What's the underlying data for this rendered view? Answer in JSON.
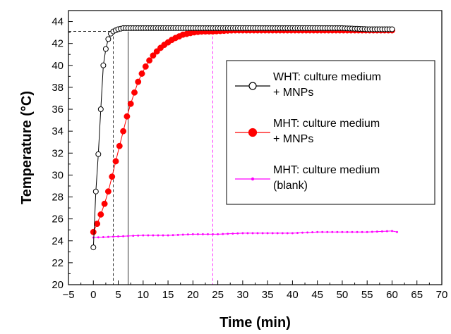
{
  "chart_data": {
    "type": "line",
    "title": "",
    "xlabel": "Time (min)",
    "ylabel": "Temperature (°C)",
    "xlim": [
      -5,
      70
    ],
    "ylim": [
      20,
      45
    ],
    "xticks": [
      -5,
      0,
      5,
      10,
      15,
      20,
      25,
      30,
      35,
      40,
      45,
      50,
      55,
      60,
      65,
      70
    ],
    "yticks": [
      20,
      22,
      24,
      26,
      28,
      30,
      32,
      34,
      36,
      38,
      40,
      42,
      44
    ],
    "grid": false,
    "legend_position": "center-right",
    "series": [
      {
        "name": "WHT: culture medium + MNPs",
        "legend_lines": [
          "WHT: culture medium",
          "+ MNPs"
        ],
        "marker": "open-circle",
        "color": "#000000",
        "x": [
          0,
          0.5,
          1,
          1.5,
          2,
          2.5,
          3,
          3.5,
          4,
          5,
          6,
          7,
          8,
          10,
          15,
          20,
          25,
          30,
          35,
          40,
          45,
          50,
          55,
          60
        ],
        "y": [
          23.4,
          28.5,
          31.9,
          36.0,
          40.0,
          41.5,
          42.4,
          42.9,
          43.1,
          43.3,
          43.4,
          43.4,
          43.4,
          43.4,
          43.4,
          43.4,
          43.4,
          43.4,
          43.4,
          43.4,
          43.4,
          43.4,
          43.3,
          43.3
        ]
      },
      {
        "name": "MHT: culture medium + MNPs",
        "legend_lines": [
          "MHT: culture medium",
          "+ MNPs"
        ],
        "marker": "filled-circle",
        "color": "#ff0000",
        "x": [
          0,
          1,
          2,
          3,
          4,
          5,
          6,
          7,
          8,
          9,
          10,
          11,
          12,
          13,
          14,
          15,
          16,
          17,
          18,
          19,
          20,
          21,
          22,
          23,
          24,
          26,
          28,
          30,
          35,
          40,
          45,
          50,
          55,
          60
        ],
        "y": [
          24.8,
          25.8,
          27.0,
          28.5,
          30.3,
          32.2,
          34.0,
          35.8,
          37.2,
          38.5,
          39.5,
          40.3,
          40.9,
          41.4,
          41.8,
          42.1,
          42.4,
          42.6,
          42.8,
          42.9,
          43.0,
          43.05,
          43.1,
          43.1,
          43.1,
          43.15,
          43.2,
          43.2,
          43.2,
          43.2,
          43.2,
          43.2,
          43.2,
          43.2
        ]
      },
      {
        "name": "MHT: culture medium (blank)",
        "legend_lines": [
          "MHT: culture medium",
          "(blank)"
        ],
        "marker": "small-dot",
        "color": "#ff00ff",
        "x": [
          0,
          5,
          10,
          15,
          20,
          25,
          30,
          35,
          40,
          45,
          50,
          55,
          60,
          61
        ],
        "y": [
          24.3,
          24.4,
          24.5,
          24.5,
          24.6,
          24.6,
          24.7,
          24.7,
          24.7,
          24.8,
          24.8,
          24.8,
          24.9,
          24.8
        ]
      }
    ],
    "guides": {
      "horizontal_y": 43.1,
      "vertical": [
        {
          "x": 4,
          "color": "#000000",
          "dash": true
        },
        {
          "x": 7,
          "color": "#000000",
          "dash": false
        },
        {
          "x": 24,
          "color": "#ff00ff",
          "dash": true
        }
      ]
    }
  }
}
